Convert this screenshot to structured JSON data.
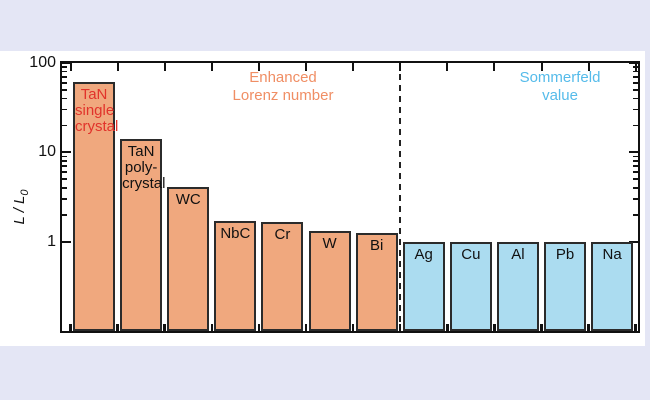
{
  "figure": {
    "background_color": "#e4e6f5",
    "panel_color": "#ffffff",
    "axis_color": "#111111",
    "bar_border_color": "#2b2b2b"
  },
  "chart_data": {
    "type": "bar",
    "title": "",
    "xlabel": "",
    "ylabel": {
      "main": "L / L",
      "sub": "0"
    },
    "yscale": "log",
    "ylim": [
      0.1,
      100
    ],
    "ytick_values": [
      100,
      10,
      1
    ],
    "ytick_labels": [
      "100",
      "10",
      "1"
    ],
    "grid": false,
    "legend_position": "none",
    "categories": [
      "TaN single crystal",
      "TaN poly-crystal",
      "WC",
      "NbC",
      "Cr",
      "W",
      "Bi",
      "Ag",
      "Cu",
      "Al",
      "Pb",
      "Na"
    ],
    "values": [
      62,
      14,
      4.1,
      1.7,
      1.65,
      1.3,
      1.25,
      1,
      1,
      1,
      1,
      1
    ],
    "bar_label_lines": [
      [
        "TaN",
        "single",
        "crystal"
      ],
      [
        "TaN",
        "poly-",
        "crystal"
      ],
      [
        "WC"
      ],
      [
        "NbC"
      ],
      [
        "Cr"
      ],
      [
        "W"
      ],
      [
        "Bi"
      ],
      [
        "Ag"
      ],
      [
        "Cu"
      ],
      [
        "Al"
      ],
      [
        "Pb"
      ],
      [
        "Na"
      ]
    ],
    "bar_label_colors": [
      "#e1332b",
      "#111111",
      "#111111",
      "#111111",
      "#111111",
      "#111111",
      "#111111",
      "#111111",
      "#111111",
      "#111111",
      "#111111",
      "#111111"
    ],
    "groups": [
      {
        "label_lines": [
          "Enhanced",
          "Lorenz number"
        ],
        "label_color": "#f08e64",
        "bar_fill": "#f0a87e",
        "start_index": 0,
        "end_index": 6
      },
      {
        "label_lines": [
          "Sommerfeld",
          "value"
        ],
        "label_color": "#55bbea",
        "bar_fill": "#abdcf0",
        "start_index": 7,
        "end_index": 11
      }
    ],
    "divider_after_index": 6,
    "divider_style": "dashed"
  }
}
